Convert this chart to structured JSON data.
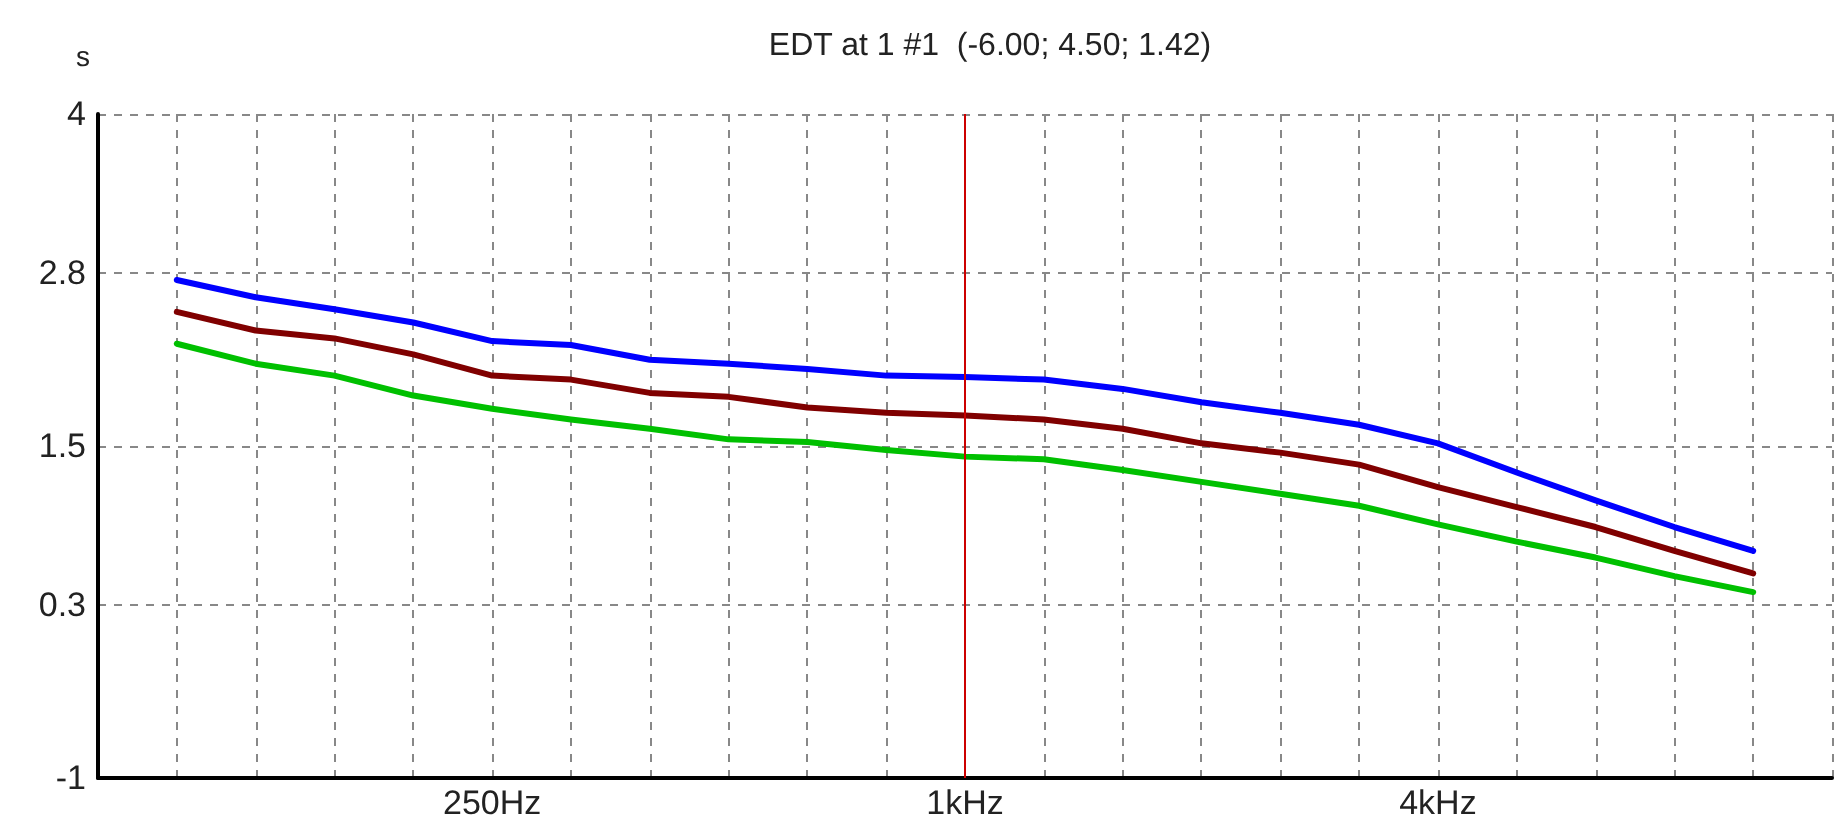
{
  "chart_data": {
    "type": "line",
    "title": "EDT at 1 #1  (-6.00; 4.50; 1.42)",
    "ylabel": "s",
    "categories": [
      null,
      null,
      null,
      null,
      null,
      "250Hz",
      null,
      null,
      null,
      null,
      null,
      "1kHz",
      null,
      null,
      null,
      null,
      null,
      "4kHz",
      null,
      null,
      null,
      null,
      null
    ],
    "series": [
      {
        "color": "#0000ff",
        "values": [
          null,
          2.75,
          2.62,
          2.53,
          2.43,
          2.29,
          2.26,
          2.15,
          2.12,
          2.08,
          2.03,
          2.02,
          2.0,
          1.93,
          1.83,
          1.75,
          1.66,
          1.52,
          1.3,
          1.09,
          0.89,
          0.71,
          null
        ]
      },
      {
        "color": "#800000",
        "values": [
          null,
          2.51,
          2.37,
          2.31,
          2.19,
          2.03,
          2.0,
          1.9,
          1.87,
          1.79,
          1.75,
          1.73,
          1.7,
          1.63,
          1.52,
          1.45,
          1.36,
          1.19,
          1.04,
          0.89,
          0.71,
          0.54,
          null
        ]
      },
      {
        "color": "#00c000",
        "values": [
          null,
          2.27,
          2.12,
          2.03,
          1.88,
          1.78,
          1.7,
          1.63,
          1.55,
          1.53,
          1.47,
          1.42,
          1.4,
          1.32,
          1.23,
          1.14,
          1.05,
          0.91,
          0.78,
          0.66,
          0.52,
          0.4,
          null
        ]
      }
    ],
    "ylim": [
      -1,
      4
    ],
    "yticks": [
      -1,
      0.3,
      1.5,
      2.8,
      4
    ],
    "ref_lines": [
      {
        "axis": "x",
        "value": "1kHz",
        "color": "#cc0000"
      }
    ],
    "grid": true,
    "marker": "none",
    "line_style": "solid"
  }
}
